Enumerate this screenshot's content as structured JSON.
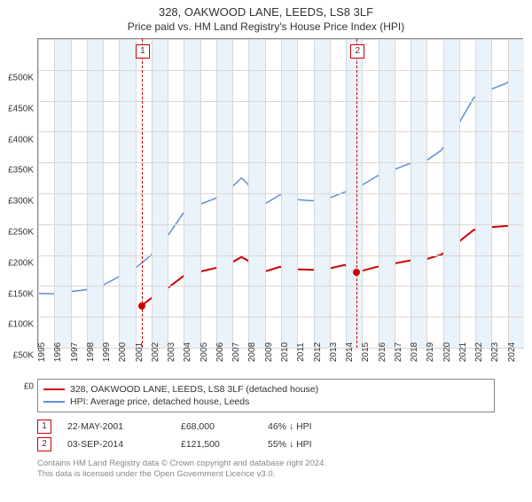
{
  "title_main": "328, OAKWOOD LANE, LEEDS, LS8 3LF",
  "title_sub": "Price paid vs. HM Land Registry's House Price Index (HPI)",
  "chart": {
    "type": "line",
    "background_color": "#ffffff",
    "grid_color": "#d8d8d8",
    "band_color": "#eaf2fa",
    "plot_border_color": "#888888",
    "x_years": [
      1995,
      1996,
      1997,
      1998,
      1999,
      2000,
      2001,
      2002,
      2003,
      2004,
      2005,
      2006,
      2007,
      2008,
      2009,
      2010,
      2011,
      2012,
      2013,
      2014,
      2015,
      2016,
      2017,
      2018,
      2019,
      2020,
      2021,
      2022,
      2023,
      2024
    ],
    "x_min": 1995,
    "x_max": 2025,
    "ylim": [
      0,
      500000
    ],
    "ytick_step": 50000,
    "y_ticks": [
      0,
      50000,
      100000,
      150000,
      200000,
      250000,
      300000,
      350000,
      400000,
      450000,
      500000
    ],
    "y_tick_labels": [
      "£0",
      "£50K",
      "£100K",
      "£150K",
      "£200K",
      "£250K",
      "£300K",
      "£350K",
      "£400K",
      "£450K",
      "£500K"
    ],
    "axis_fontsize": 10,
    "band_alternate": true,
    "sale_markers": [
      {
        "num": "1",
        "x": 2001.4,
        "line_color": "#cc0000"
      },
      {
        "num": "2",
        "x": 2014.67,
        "line_color": "#cc0000"
      }
    ],
    "sale_points": [
      {
        "x": 2001.4,
        "y": 68000,
        "color": "#cc0000"
      },
      {
        "x": 2014.67,
        "y": 121500,
        "color": "#cc0000"
      }
    ],
    "series": [
      {
        "name": "hpi",
        "color": "#5b8fd6",
        "line_width": 1.5,
        "data": [
          [
            1995,
            88000
          ],
          [
            1996,
            87000
          ],
          [
            1997,
            91000
          ],
          [
            1998,
            94000
          ],
          [
            1999,
            101000
          ],
          [
            2000,
            115000
          ],
          [
            2001,
            128000
          ],
          [
            2002,
            150000
          ],
          [
            2003,
            180000
          ],
          [
            2004,
            218000
          ],
          [
            2005,
            232000
          ],
          [
            2006,
            242000
          ],
          [
            2007,
            260000
          ],
          [
            2007.6,
            275000
          ],
          [
            2008,
            265000
          ],
          [
            2008.7,
            228000
          ],
          [
            2009,
            232000
          ],
          [
            2010,
            248000
          ],
          [
            2011,
            240000
          ],
          [
            2012,
            238000
          ],
          [
            2013,
            242000
          ],
          [
            2014,
            252000
          ],
          [
            2015,
            262000
          ],
          [
            2016,
            278000
          ],
          [
            2017,
            288000
          ],
          [
            2018,
            298000
          ],
          [
            2019,
            302000
          ],
          [
            2020,
            320000
          ],
          [
            2021,
            360000
          ],
          [
            2022,
            405000
          ],
          [
            2023,
            418000
          ],
          [
            2024,
            428000
          ],
          [
            2025,
            450000
          ]
        ]
      },
      {
        "name": "property",
        "color": "#cc0000",
        "line_width": 2,
        "data": [
          [
            2001.4,
            68000
          ],
          [
            2002,
            80000
          ],
          [
            2003,
            96000
          ],
          [
            2004,
            116000
          ],
          [
            2005,
            123000
          ],
          [
            2006,
            129000
          ],
          [
            2007,
            138000
          ],
          [
            2007.6,
            147000
          ],
          [
            2008,
            141000
          ],
          [
            2008.7,
            121000
          ],
          [
            2009,
            123000
          ],
          [
            2010,
            131000
          ],
          [
            2011,
            127000
          ],
          [
            2012,
            126000
          ],
          [
            2013,
            128000
          ],
          [
            2014,
            134000
          ],
          [
            2014.67,
            121500
          ],
          [
            2015,
            124000
          ],
          [
            2016,
            131000
          ],
          [
            2017,
            136000
          ],
          [
            2018,
            141000
          ],
          [
            2019,
            143000
          ],
          [
            2020,
            151000
          ],
          [
            2021,
            170000
          ],
          [
            2022,
            191000
          ],
          [
            2023,
            195000
          ],
          [
            2024,
            197000
          ],
          [
            2025,
            200000
          ]
        ]
      }
    ]
  },
  "legend": {
    "items": [
      {
        "color": "#cc0000",
        "label": "328, OAKWOOD LANE, LEEDS, LS8 3LF (detached house)"
      },
      {
        "color": "#5b8fd6",
        "label": "HPI: Average price, detached house, Leeds"
      }
    ]
  },
  "sales": [
    {
      "num": "1",
      "date": "22-MAY-2001",
      "price": "£68,000",
      "pct": "46% ↓ HPI"
    },
    {
      "num": "2",
      "date": "03-SEP-2014",
      "price": "£121,500",
      "pct": "55% ↓ HPI"
    }
  ],
  "footer_lines": [
    "Contains HM Land Registry data © Crown copyright and database right 2024.",
    "This data is licensed under the Open Government Licence v3.0."
  ]
}
